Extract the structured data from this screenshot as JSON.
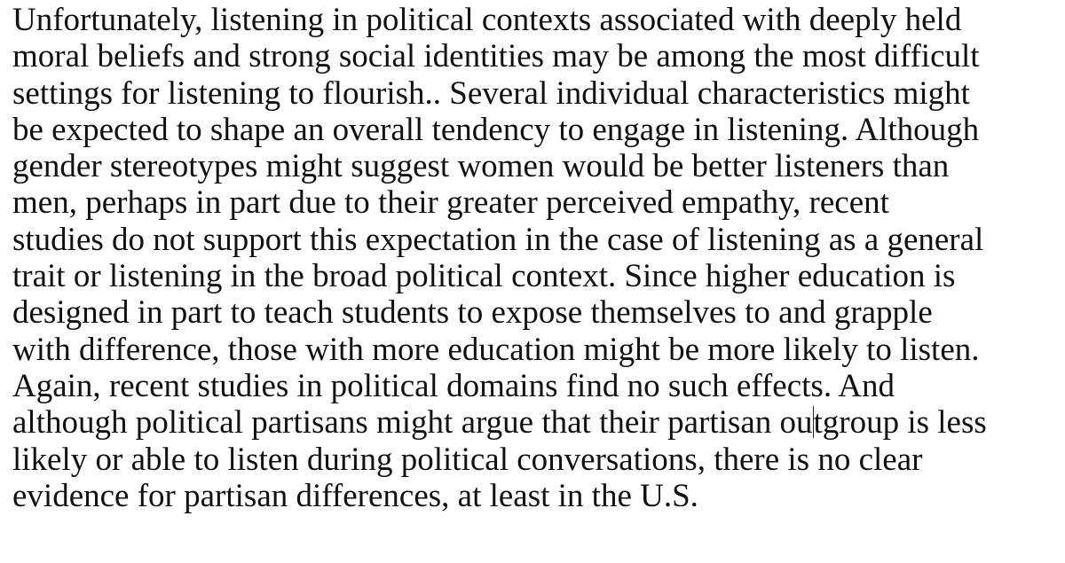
{
  "document": {
    "lines": [
      "Unfortunately, listening in political contexts associated with deeply held",
      "moral beliefs and strong social identities may be among the most difficult",
      "settings for listening to flourish.. Several individual characteristics might",
      "be expected to shape an overall tendency to engage in listening. Although",
      "gender stereotypes might suggest women would be better listeners than",
      "men, perhaps in part due to their greater perceived empathy, recent",
      "studies do not support this expectation in the case of listening as a general",
      "trait or listening in the broad political context. Since higher education is",
      "designed in part to teach students to expose themselves to and grapple",
      "with difference, those with more education might be more likely to listen.",
      "Again, recent studies in political domains find no such effects. And",
      "although political partisans might argue that their partisan ou",
      "likely or able to listen during political conversations, there is no clear",
      "evidence for partisan differences, at least in the U.S."
    ],
    "line_12_after_caret": "tgroup is less"
  }
}
